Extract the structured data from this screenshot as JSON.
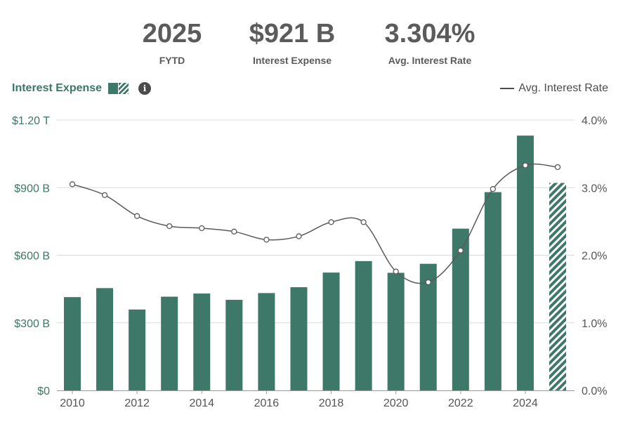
{
  "kpis": [
    {
      "value": "2025",
      "label": "FYTD"
    },
    {
      "value": "$921 B",
      "label": "Interest Expense"
    },
    {
      "value": "3.304%",
      "label": "Avg. Interest Rate"
    }
  ],
  "legend": {
    "bars_label": "Interest Expense",
    "line_label": "Avg. Interest Rate",
    "info_icon": "info-icon"
  },
  "colors": {
    "bar": "#3d7868",
    "line": "#5a5a5a",
    "grid": "#dcdcdc",
    "axis_text": "#3c7767",
    "right_axis_text": "#555555"
  },
  "chart_data": {
    "type": "bar",
    "categories": [
      "2010",
      "2011",
      "2012",
      "2013",
      "2014",
      "2015",
      "2016",
      "2017",
      "2018",
      "2019",
      "2020",
      "2021",
      "2022",
      "2023",
      "2024",
      "2025"
    ],
    "x_tick_labels": [
      "2010",
      "2012",
      "2014",
      "2016",
      "2018",
      "2020",
      "2022",
      "2024"
    ],
    "series": [
      {
        "name": "Interest Expense",
        "axis": "left",
        "unit": "$B",
        "values": [
          414,
          454,
          359,
          416,
          430,
          402,
          432,
          458,
          523,
          574,
          522,
          562,
          718,
          880,
          1131,
          921
        ],
        "hatched_last": true
      },
      {
        "name": "Avg. Interest Rate",
        "axis": "right",
        "type": "line",
        "unit": "%",
        "values": [
          3.05,
          2.89,
          2.58,
          2.43,
          2.4,
          2.35,
          2.23,
          2.28,
          2.49,
          2.49,
          1.76,
          1.6,
          2.07,
          2.98,
          3.33,
          3.304
        ]
      }
    ],
    "left_axis": {
      "ticks": [
        "$0",
        "$300 B",
        "$600 B",
        "$900 B",
        "$1.20 T"
      ],
      "ylim": [
        0,
        1200
      ]
    },
    "right_axis": {
      "ticks": [
        "0.0%",
        "1.0%",
        "2.0%",
        "3.0%",
        "4.0%"
      ],
      "ylim": [
        0,
        4
      ]
    },
    "grid": true
  }
}
